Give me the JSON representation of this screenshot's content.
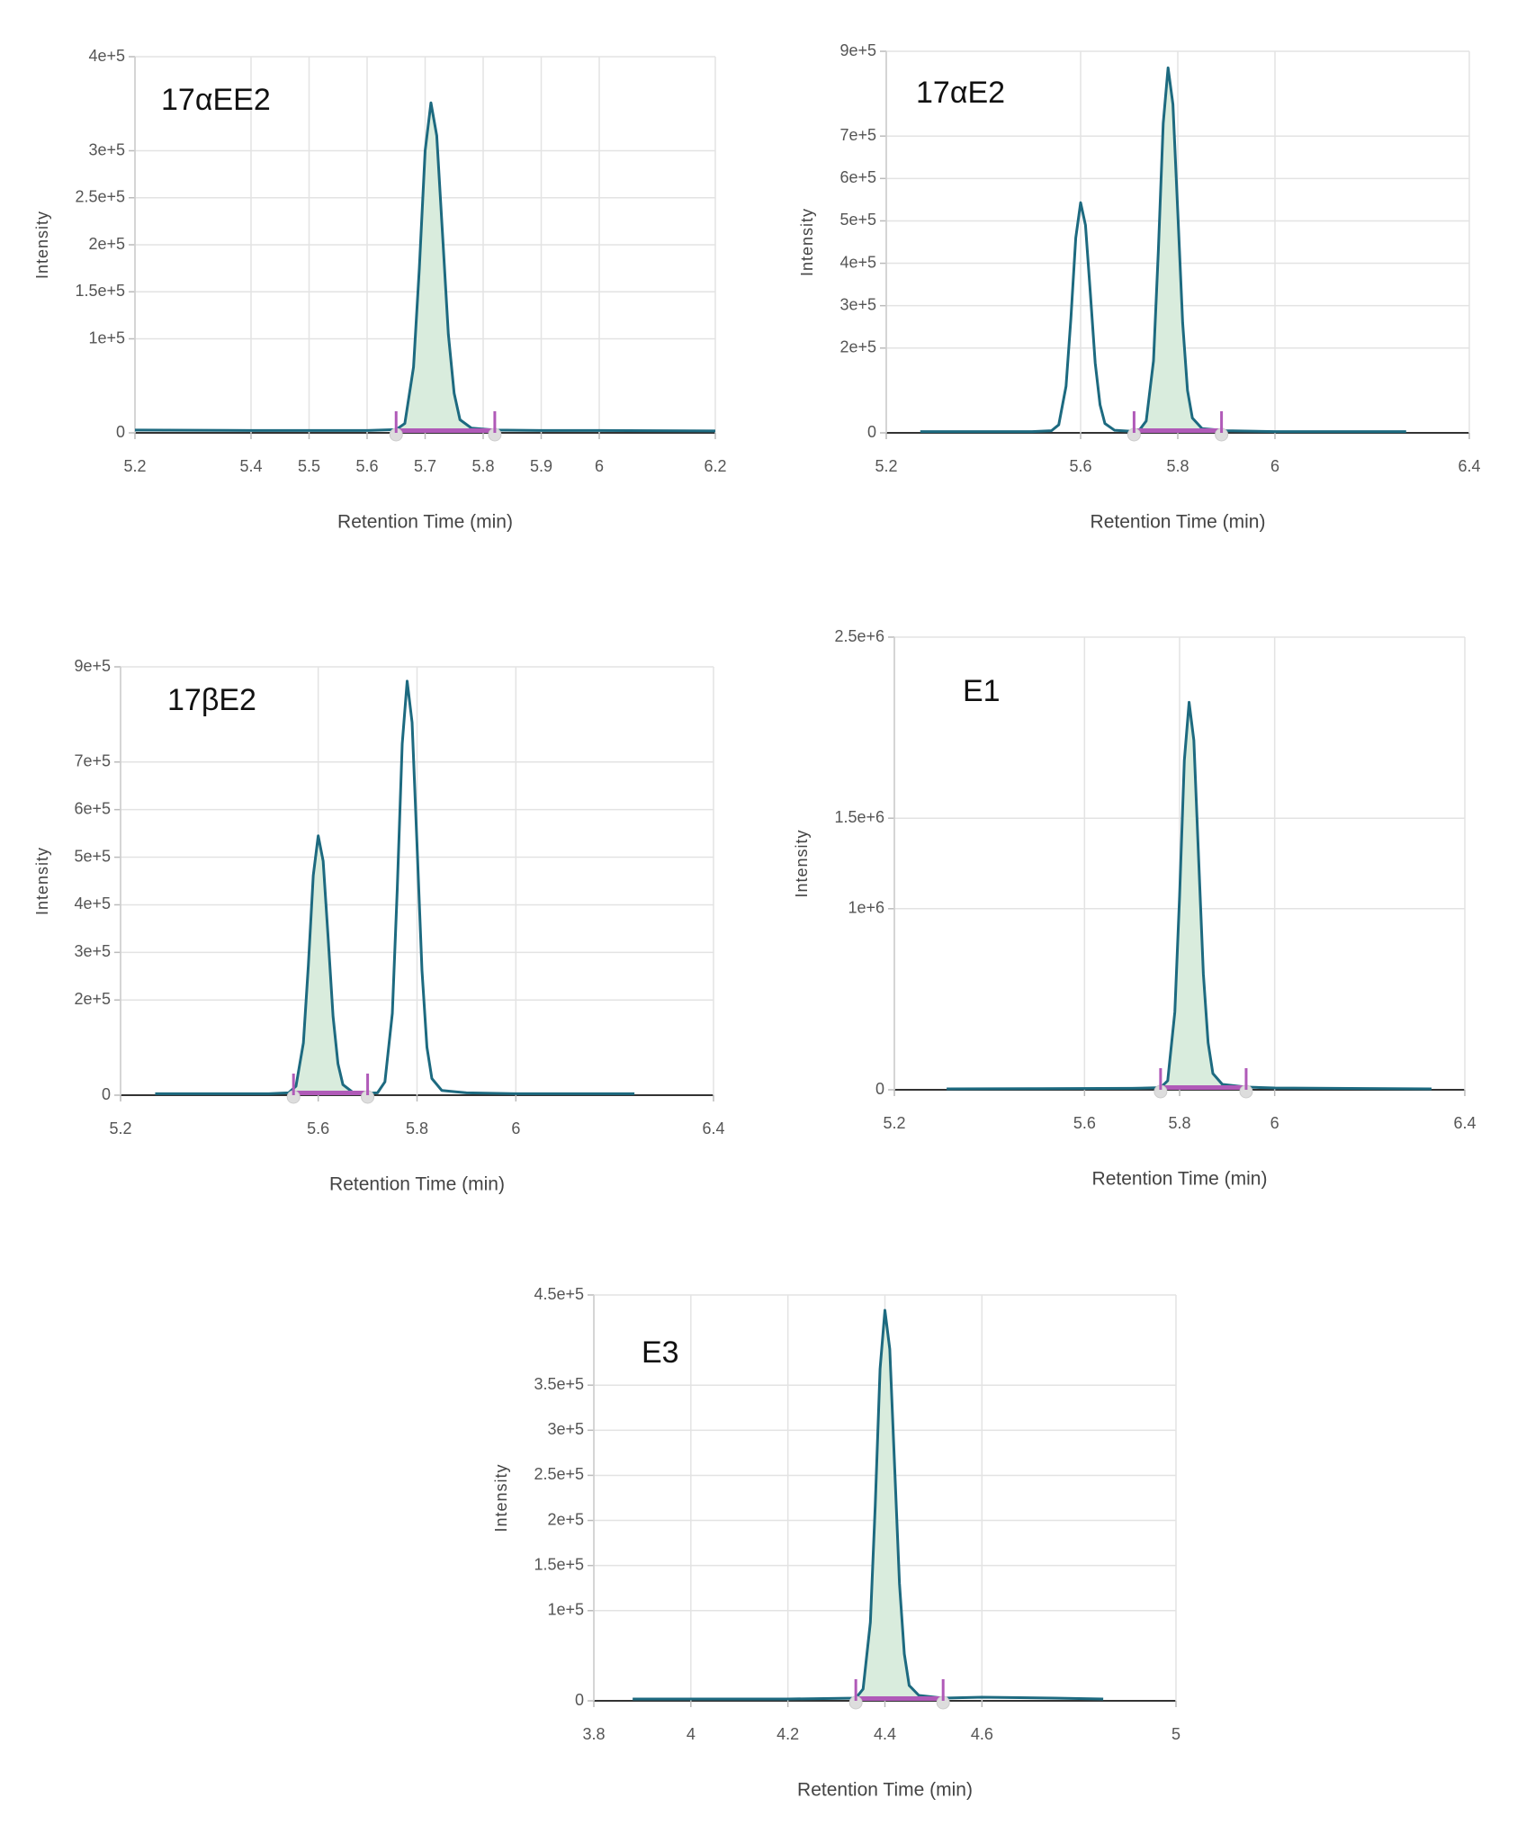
{
  "chart_data": [
    {
      "type": "line",
      "title": "17αEE2",
      "x_label": "Retention Time (min)",
      "y_label": "Intensity",
      "color": "#1d6a80",
      "fill_color": "#d9ecdd",
      "integration_color": "#b05ab8",
      "grid": true,
      "xlim": [
        5.2,
        6.2
      ],
      "xticks": [
        5.2,
        5.4,
        5.5,
        5.6,
        5.7,
        5.8,
        5.9,
        6,
        6.2
      ],
      "ylim": [
        0,
        400000
      ],
      "yticks": [
        0,
        {
          "value": 100000,
          "label": "1e+5"
        },
        {
          "value": 150000,
          "label": "1.5e+5"
        },
        {
          "value": 200000,
          "label": "2e+5"
        },
        {
          "value": 250000,
          "label": "2.5e+5"
        },
        {
          "value": 300000,
          "label": "3e+5"
        },
        {
          "value": 400000,
          "label": "4e+5"
        }
      ],
      "integration": [
        5.65,
        5.82
      ],
      "x": [
        5.2,
        5.4,
        5.6,
        5.65,
        5.665,
        5.68,
        5.69,
        5.7,
        5.71,
        5.72,
        5.73,
        5.74,
        5.75,
        5.76,
        5.78,
        5.82,
        5.9,
        6,
        6.2
      ],
      "values": [
        3000,
        2500,
        2500,
        3500,
        10000,
        70000,
        175000,
        300000,
        351000,
        316000,
        211000,
        105000,
        42000,
        14000,
        5000,
        3000,
        2500,
        2500,
        2000
      ]
    },
    {
      "type": "line",
      "title": "17αE2",
      "x_label": "Retention Time (min)",
      "y_label": "Intensity",
      "color": "#1d6a80",
      "fill_color": "#d9ecdd",
      "integration_color": "#b05ab8",
      "grid": true,
      "xlim": [
        5.2,
        6.4
      ],
      "xticks": [
        5.2,
        5.6,
        5.8,
        6,
        6.4
      ],
      "ylim": [
        0,
        900000
      ],
      "yticks": [
        0,
        {
          "value": 200000,
          "label": "2e+5"
        },
        {
          "value": 300000,
          "label": "3e+5"
        },
        {
          "value": 400000,
          "label": "4e+5"
        },
        {
          "value": 500000,
          "label": "5e+5"
        },
        {
          "value": 600000,
          "label": "6e+5"
        },
        {
          "value": 700000,
          "label": "7e+5"
        },
        {
          "value": 900000,
          "label": "9e+5"
        }
      ],
      "integration": [
        5.71,
        5.89
      ],
      "x": [
        5.27,
        5.4,
        5.5,
        5.54,
        5.555,
        5.57,
        5.58,
        5.59,
        5.6,
        5.61,
        5.62,
        5.63,
        5.64,
        5.65,
        5.67,
        5.7,
        5.72,
        5.735,
        5.75,
        5.76,
        5.77,
        5.78,
        5.79,
        5.8,
        5.81,
        5.82,
        5.83,
        5.85,
        5.9,
        6,
        6.1,
        6.27
      ],
      "values": [
        3000,
        3000,
        3000,
        5000,
        19000,
        110000,
        270000,
        460000,
        543000,
        490000,
        330000,
        165000,
        66000,
        22000,
        6000,
        4000,
        5000,
        28000,
        170000,
        430000,
        730000,
        861000,
        775000,
        520000,
        260000,
        100000,
        35000,
        10000,
        5000,
        3000,
        3000,
        3000
      ]
    },
    {
      "type": "line",
      "title": "17βE2",
      "x_label": "Retention Time (min)",
      "y_label": "Intensity",
      "color": "#1d6a80",
      "fill_color": "#d9ecdd",
      "integration_color": "#b05ab8",
      "grid": true,
      "xlim": [
        5.2,
        6.4
      ],
      "xticks": [
        5.2,
        5.6,
        5.8,
        6,
        6.4
      ],
      "ylim": [
        0,
        900000
      ],
      "yticks": [
        0,
        {
          "value": 200000,
          "label": "2e+5"
        },
        {
          "value": 300000,
          "label": "3e+5"
        },
        {
          "value": 400000,
          "label": "4e+5"
        },
        {
          "value": 500000,
          "label": "5e+5"
        },
        {
          "value": 600000,
          "label": "6e+5"
        },
        {
          "value": 700000,
          "label": "7e+5"
        },
        {
          "value": 900000,
          "label": "9e+5"
        }
      ],
      "integration": [
        5.55,
        5.7
      ],
      "x": [
        5.27,
        5.4,
        5.5,
        5.54,
        5.555,
        5.57,
        5.58,
        5.59,
        5.6,
        5.61,
        5.62,
        5.63,
        5.64,
        5.65,
        5.67,
        5.7,
        5.72,
        5.735,
        5.75,
        5.76,
        5.77,
        5.78,
        5.79,
        5.8,
        5.81,
        5.82,
        5.83,
        5.85,
        5.9,
        6,
        6.1,
        6.24
      ],
      "values": [
        3000,
        3000,
        3000,
        5000,
        19000,
        110000,
        272000,
        462000,
        545000,
        492000,
        332000,
        166000,
        66000,
        22000,
        6000,
        4000,
        5000,
        28000,
        172000,
        434000,
        738000,
        870000,
        783000,
        525000,
        262000,
        101000,
        35000,
        10000,
        5000,
        3000,
        3000,
        3000
      ]
    },
    {
      "type": "line",
      "title": "E1",
      "x_label": "Retention Time (min)",
      "y_label": "Intensity",
      "color": "#1d6a80",
      "fill_color": "#d9ecdd",
      "integration_color": "#b05ab8",
      "grid": true,
      "xlim": [
        5.2,
        6.4
      ],
      "xticks": [
        5.2,
        5.6,
        5.8,
        6,
        6.4
      ],
      "ylim": [
        0,
        2500000
      ],
      "yticks": [
        0,
        {
          "value": 1000000,
          "label": "1e+6"
        },
        {
          "value": 1500000,
          "label": "1.5e+6"
        },
        {
          "value": 2500000,
          "label": "2.5e+6"
        }
      ],
      "integration": [
        5.76,
        5.94
      ],
      "x": [
        5.31,
        5.5,
        5.7,
        5.76,
        5.775,
        5.79,
        5.8,
        5.81,
        5.82,
        5.83,
        5.84,
        5.85,
        5.86,
        5.87,
        5.89,
        5.94,
        6,
        6.2,
        6.33
      ],
      "values": [
        5000,
        6000,
        8000,
        12000,
        50000,
        430000,
        1070000,
        1820000,
        2140000,
        1930000,
        1280000,
        640000,
        260000,
        90000,
        30000,
        15000,
        10000,
        7000,
        5000
      ]
    },
    {
      "type": "line",
      "title": "E3",
      "x_label": "Retention Time (min)",
      "y_label": "Intensity",
      "color": "#1d6a80",
      "fill_color": "#d9ecdd",
      "integration_color": "#b05ab8",
      "grid": true,
      "xlim": [
        3.8,
        5
      ],
      "xticks": [
        3.8,
        4,
        4.2,
        4.4,
        4.6,
        5
      ],
      "ylim": [
        0,
        450000
      ],
      "yticks": [
        0,
        {
          "value": 100000,
          "label": "1e+5"
        },
        {
          "value": 150000,
          "label": "1.5e+5"
        },
        {
          "value": 200000,
          "label": "2e+5"
        },
        {
          "value": 250000,
          "label": "2.5e+5"
        },
        {
          "value": 300000,
          "label": "3e+5"
        },
        {
          "value": 350000,
          "label": "3.5e+5"
        },
        {
          "value": 450000,
          "label": "4.5e+5"
        }
      ],
      "integration": [
        4.34,
        4.52
      ],
      "x": [
        3.88,
        4,
        4.2,
        4.34,
        4.355,
        4.37,
        4.38,
        4.39,
        4.4,
        4.41,
        4.42,
        4.43,
        4.44,
        4.45,
        4.47,
        4.52,
        4.6,
        4.75,
        4.85
      ],
      "values": [
        2000,
        2000,
        2000,
        3000,
        13000,
        87000,
        216000,
        368000,
        433000,
        390000,
        260000,
        130000,
        52000,
        17000,
        6000,
        3000,
        4000,
        3000,
        2000
      ]
    }
  ]
}
